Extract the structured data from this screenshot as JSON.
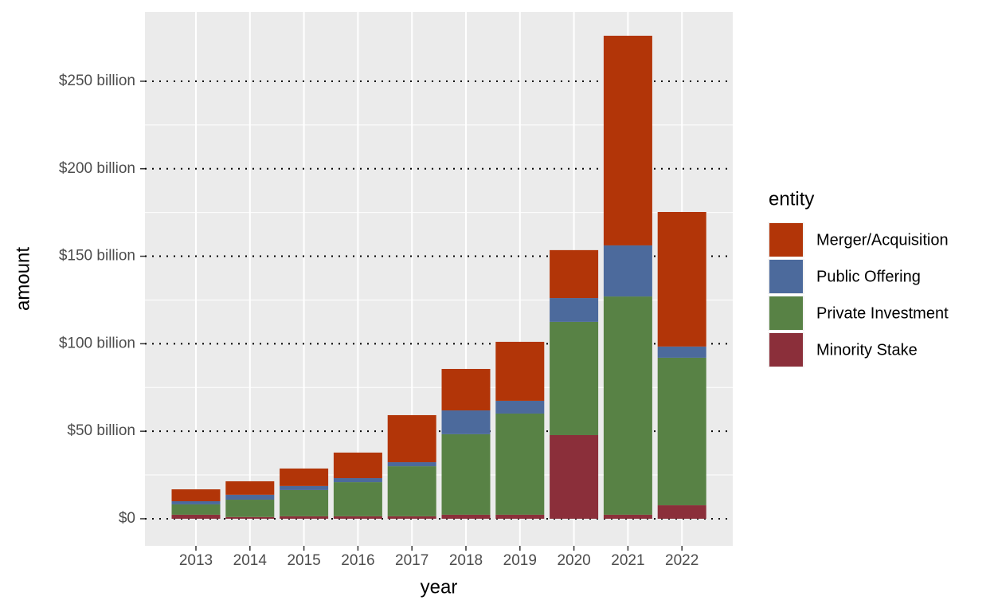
{
  "chart_data": {
    "type": "stacked_bar",
    "x_label": "year",
    "y_label": "amount",
    "categories": [
      "2013",
      "2014",
      "2015",
      "2016",
      "2017",
      "2018",
      "2019",
      "2020",
      "2021",
      "2022"
    ],
    "legend_title": "entity",
    "series": [
      {
        "name": "Merger/Acquisition",
        "color": "#b23508",
        "values": [
          6.8,
          7.7,
          10,
          14.6,
          26.9,
          23.7,
          33.7,
          27.4,
          119.8,
          76.9
        ]
      },
      {
        "name": "Public Offering",
        "color": "#4c6a9c",
        "values": [
          1.8,
          2.8,
          2.3,
          2.3,
          2.3,
          13.6,
          7.3,
          13.6,
          29.2,
          6.4
        ]
      },
      {
        "name": "Private Investment",
        "color": "#588245",
        "values": [
          5.9,
          9.9,
          15,
          19.5,
          28.6,
          46,
          57.8,
          64.7,
          124.7,
          84.3
        ]
      },
      {
        "name": "Minority Stake",
        "color": "#8b2f3a",
        "values": [
          2.3,
          1,
          1.4,
          1.4,
          1.4,
          2.3,
          2.3,
          47.8,
          2.3,
          7.7
        ]
      }
    ],
    "ylim": [
      -15.5,
      289.6
    ],
    "yticks": [
      {
        "value": 0,
        "label": "$0"
      },
      {
        "value": 50,
        "label": "$50 billion"
      },
      {
        "value": 100,
        "label": "$100 billion"
      },
      {
        "value": 150,
        "label": "$150 billion"
      },
      {
        "value": 200,
        "label": "$200 billion"
      },
      {
        "value": 250,
        "label": "$250 billion"
      }
    ],
    "grid": true,
    "legend_position": "right"
  }
}
